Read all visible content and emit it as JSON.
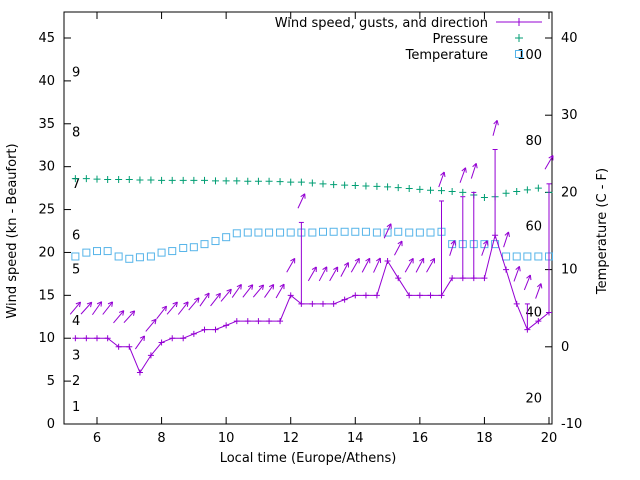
{
  "figure": {
    "xlabel": "Local time (Europe/Athens)",
    "ylabel_left": "Wind speed (kn - Beaufort)",
    "ylabel_right": "Temperature (C - F)"
  },
  "chart_data": {
    "type": "line",
    "title": "",
    "x_axis": {
      "label": "Local time (Europe/Athens)",
      "range": [
        5.0,
        20.1
      ],
      "ticks": [
        6,
        8,
        10,
        12,
        14,
        16,
        18,
        20
      ]
    },
    "y_left": {
      "label": "Wind speed (kn - Beaufort)",
      "range": [
        0,
        48
      ],
      "ticks": [
        0,
        5,
        10,
        15,
        20,
        25,
        30,
        35,
        40,
        45
      ],
      "beaufort_labels": [
        {
          "label": "1",
          "kn": 2
        },
        {
          "label": "2",
          "kn": 5
        },
        {
          "label": "3",
          "kn": 8
        },
        {
          "label": "4",
          "kn": 12
        },
        {
          "label": "5",
          "kn": 18
        },
        {
          "label": "6",
          "kn": 22
        },
        {
          "label": "7",
          "kn": 28
        },
        {
          "label": "8",
          "kn": 34
        },
        {
          "label": "9",
          "kn": 41
        }
      ]
    },
    "y_right": {
      "label": "Temperature (C - F)",
      "range_c": [
        -10,
        41.8
      ],
      "ticks_c": [
        -10,
        0,
        10,
        20,
        30,
        40
      ],
      "fahrenheit_labels": [
        {
          "label": "20",
          "f": 20
        },
        {
          "label": "40",
          "f": 40
        },
        {
          "label": "60",
          "f": 60
        },
        {
          "label": "80",
          "f": 80
        },
        {
          "label": "100",
          "f": 100
        }
      ]
    },
    "legend": [
      {
        "label": "Wind speed, gusts, and direction",
        "marker": "line-plus",
        "color": "#9400d3"
      },
      {
        "label": "Pressure",
        "marker": "plus",
        "color": "#009e73"
      },
      {
        "label": "Temperature",
        "marker": "square",
        "color": "#56b4e9"
      }
    ],
    "x": [
      5.33,
      5.67,
      6,
      6.33,
      6.67,
      7,
      7.33,
      7.67,
      8,
      8.33,
      8.67,
      9,
      9.33,
      9.67,
      10,
      10.33,
      10.67,
      11,
      11.33,
      11.67,
      12,
      12.33,
      12.67,
      13,
      13.33,
      13.67,
      14,
      14.33,
      14.67,
      15,
      15.33,
      15.67,
      16,
      16.33,
      16.67,
      17,
      17.33,
      17.67,
      18,
      18.33,
      18.67,
      19,
      19.33,
      19.67,
      20
    ],
    "series": {
      "wind_kn": [
        10,
        10,
        10,
        10,
        9,
        9,
        6,
        8,
        9.5,
        10,
        10,
        10.5,
        11,
        11,
        11.5,
        12,
        12,
        12,
        12,
        12,
        15,
        14,
        14,
        14,
        14,
        14.5,
        15,
        15,
        15,
        19,
        17,
        15,
        15,
        15,
        15,
        17,
        17,
        17,
        17,
        22,
        18,
        14,
        11,
        12,
        13
      ],
      "gust_kn": [
        null,
        null,
        null,
        null,
        null,
        null,
        null,
        null,
        null,
        null,
        null,
        null,
        null,
        null,
        null,
        null,
        null,
        null,
        null,
        null,
        null,
        23.5,
        null,
        null,
        null,
        null,
        null,
        null,
        null,
        null,
        null,
        null,
        null,
        null,
        26,
        null,
        26.5,
        27,
        null,
        32,
        null,
        null,
        14,
        null,
        28
      ],
      "wind_dir_arrow_deg": [
        50,
        48,
        55,
        52,
        50,
        48,
        55,
        50,
        52,
        50,
        52,
        50,
        55,
        52,
        50,
        55,
        52,
        50,
        55,
        60,
        60,
        65,
        60,
        62,
        60,
        62,
        60,
        62,
        65,
        65,
        62,
        60,
        62,
        60,
        70,
        72,
        70,
        72,
        70,
        75,
        72,
        70,
        68,
        70,
        60
      ],
      "pressure_plot_kn": [
        28.6,
        28.6,
        28.55,
        28.5,
        28.5,
        28.5,
        28.45,
        28.45,
        28.4,
        28.4,
        28.4,
        28.4,
        28.4,
        28.35,
        28.35,
        28.35,
        28.3,
        28.3,
        28.3,
        28.25,
        28.2,
        28.2,
        28.1,
        28.0,
        27.9,
        27.85,
        27.8,
        27.75,
        27.7,
        27.65,
        27.55,
        27.45,
        27.35,
        27.25,
        27.2,
        27.1,
        27.0,
        26.7,
        26.4,
        26.5,
        26.9,
        27.1,
        27.3,
        27.5,
        27.0
      ],
      "temperature_c": [
        11.7,
        12.2,
        12.4,
        12.4,
        11.7,
        11.4,
        11.6,
        11.7,
        12.2,
        12.4,
        12.8,
        12.9,
        13.3,
        13.7,
        14.2,
        14.7,
        14.8,
        14.8,
        14.8,
        14.8,
        14.8,
        14.8,
        14.8,
        14.9,
        14.9,
        14.9,
        14.9,
        14.9,
        14.8,
        14.8,
        14.9,
        14.8,
        14.8,
        14.8,
        14.9,
        13.3,
        13.3,
        13.3,
        13.3,
        13.3,
        11.7,
        11.7,
        11.7,
        11.7,
        11.7
      ]
    },
    "notes": "Gust values drawn as vertical bars above wind line; direction arrows above points. Pressure has no visible numeric axis; values given in left-axis plot units. Temperature in C (right axis)."
  }
}
